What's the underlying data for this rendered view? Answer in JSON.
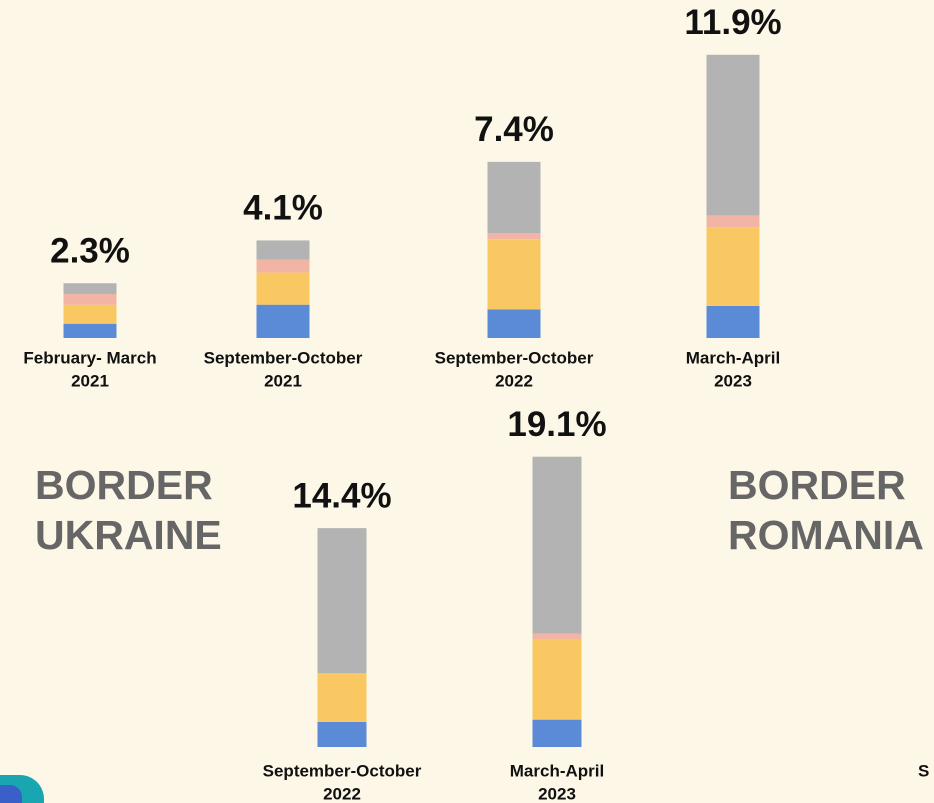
{
  "chart_data": [
    {
      "type": "bar",
      "stacked": true,
      "categories": [
        [
          "February- March",
          "2021"
        ],
        [
          "September-October",
          "2021"
        ],
        [
          "September-October",
          "2022"
        ],
        [
          "March-April",
          "2023"
        ]
      ],
      "series": [
        {
          "color": "#5b8bd6",
          "values": [
            0.6,
            1.4,
            1.2,
            1.35
          ]
        },
        {
          "color": "#f9c863",
          "values": [
            0.8,
            1.35,
            2.95,
            3.3
          ]
        },
        {
          "color": "#f2b5a5",
          "values": [
            0.45,
            0.55,
            0.25,
            0.5
          ]
        },
        {
          "color": "#b3b3b3",
          "values": [
            0.45,
            0.8,
            3.0,
            6.75
          ]
        }
      ],
      "total_labels": [
        "2.3%",
        "4.1%",
        "7.4%",
        "11.9%"
      ]
    },
    {
      "type": "bar",
      "stacked": true,
      "categories": [
        [
          "September-October",
          "2022"
        ],
        [
          "March-April",
          "2023"
        ]
      ],
      "series": [
        {
          "color": "#5b8bd6",
          "values": [
            1.65,
            1.8
          ]
        },
        {
          "color": "#f9c863",
          "values": [
            3.2,
            5.25
          ]
        },
        {
          "color": "#f2b5a5",
          "values": [
            0,
            0.4
          ]
        },
        {
          "color": "#b3b3b3",
          "values": [
            9.55,
            11.65
          ]
        }
      ],
      "total_labels": [
        "14.4%",
        "19.1%"
      ]
    }
  ],
  "annotations": [
    [
      "BORDER",
      "UKRAINE"
    ],
    [
      "BORDER",
      "ROMANIA"
    ],
    [
      "S"
    ]
  ]
}
